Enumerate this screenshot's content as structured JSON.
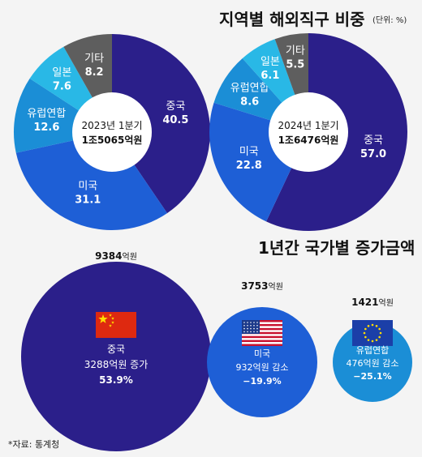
{
  "title": "지역별 해외직구 비중",
  "unit": "(단위: %)",
  "subtitle": "1년간 국가별 증가금액",
  "source": "*자료: 통계청",
  "colors": {
    "china": "#2b1f8a",
    "usa": "#1e5fd6",
    "eu": "#1b8ed6",
    "japan": "#29b8e6",
    "other": "#5e5e5e"
  },
  "chart_data": [
    {
      "type": "pie",
      "center_label": [
        "2023년 1분기",
        "1조5065억원"
      ],
      "slices": [
        {
          "label": "중국",
          "value": 40.5
        },
        {
          "label": "미국",
          "value": 31.1
        },
        {
          "label": "유럽연합",
          "value": 12.6
        },
        {
          "label": "일본",
          "value": 7.6
        },
        {
          "label": "기타",
          "value": 8.2
        }
      ]
    },
    {
      "type": "pie",
      "center_label": [
        "2024년 1분기",
        "1조6476억원"
      ],
      "slices": [
        {
          "label": "중국",
          "value": 57.0
        },
        {
          "label": "미국",
          "value": 22.8
        },
        {
          "label": "유럽연합",
          "value": 8.6
        },
        {
          "label": "일본",
          "value": 6.1
        },
        {
          "label": "기타",
          "value": 5.5
        }
      ]
    },
    {
      "type": "bubble",
      "bubbles": [
        {
          "name": "중국",
          "flag": "china-flag",
          "amount": 9384,
          "amount_label": "9384억원",
          "amount_unit": "억원",
          "line1": "중국",
          "line2": "3288억원 증가",
          "line3": "53.9%"
        },
        {
          "name": "미국",
          "flag": "usa-flag",
          "amount": 3753,
          "amount_label": "3753억원",
          "amount_unit": "억원",
          "line1": "미국",
          "line2": "932억원 감소",
          "line3": "−19.9%"
        },
        {
          "name": "유럽연합",
          "flag": "eu-flag",
          "amount": 1421,
          "amount_label": "1421억원",
          "amount_unit": "억원",
          "line1": "유럽연합",
          "line2": "476억원 감소",
          "line3": "−25.1%"
        }
      ]
    }
  ]
}
